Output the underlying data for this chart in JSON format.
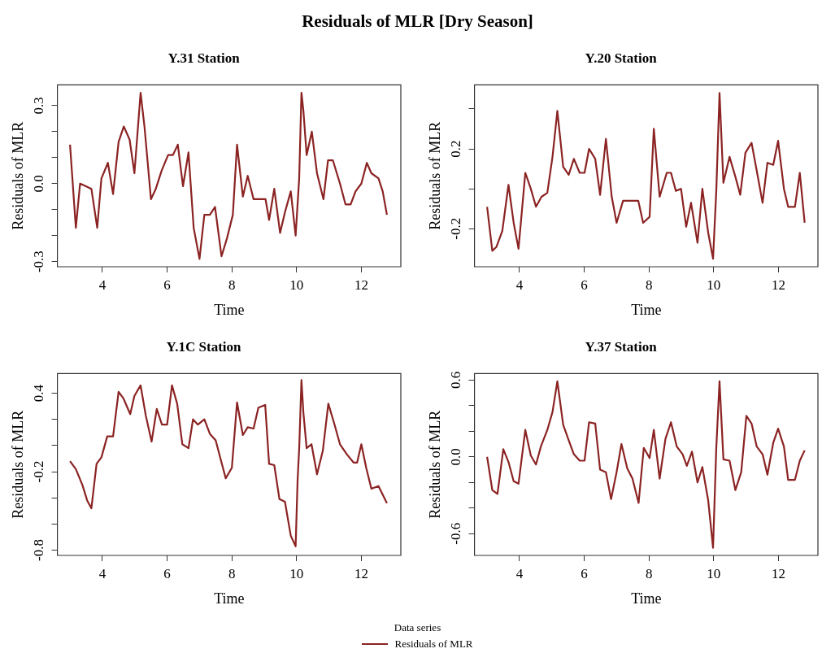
{
  "chart_data": [
    {
      "type": "line",
      "title": "Y.31 Station",
      "xlabel": "Time",
      "ylabel": "Residuals of MLR",
      "annotations": [
        "Residuals of MLR [Dry Season]"
      ],
      "xlim": [
        2.61,
        13.22
      ],
      "xticks": [
        4,
        6,
        8,
        10,
        12
      ],
      "ylim": [
        -0.32,
        0.38
      ],
      "yticks": [
        {
          "value": -0.3,
          "label": "-0.3"
        },
        {
          "value": -0.2,
          "label": null
        },
        {
          "value": -0.1,
          "label": null
        },
        {
          "value": 0,
          "label": "0.0"
        },
        {
          "value": 0.1,
          "label": null
        },
        {
          "value": 0.2,
          "label": null
        },
        {
          "value": 0.3,
          "label": "0.3"
        }
      ],
      "grid": false,
      "marker": "none",
      "line_style": "solid",
      "series": [
        {
          "color": "#8b2323",
          "x": [
            3.0,
            3.18,
            3.31,
            3.49,
            3.66,
            3.84,
            3.97,
            4.17,
            4.33,
            4.5,
            4.66,
            4.84,
            4.99,
            5.18,
            5.3,
            5.5,
            5.65,
            5.83,
            6.03,
            6.18,
            6.33,
            6.49,
            6.66,
            6.82,
            7.0,
            7.15,
            7.32,
            7.48,
            7.68,
            7.85,
            8.03,
            8.16,
            8.34,
            8.49,
            8.67,
            8.87,
            9.04,
            9.15,
            9.31,
            9.49,
            9.64,
            9.82,
            9.97,
            10.08,
            10.15,
            10.21,
            10.31,
            10.47,
            10.63,
            10.83,
            10.97,
            11.12,
            11.34,
            11.51,
            11.67,
            11.82,
            12.0,
            12.17,
            12.31,
            12.53,
            12.66,
            12.79
          ],
          "values": [
            0.15,
            -0.17,
            0.0,
            -0.01,
            -0.02,
            -0.17,
            0.02,
            0.08,
            -0.04,
            0.16,
            0.22,
            0.17,
            0.04,
            0.35,
            0.22,
            -0.06,
            -0.02,
            0.05,
            0.11,
            0.11,
            0.15,
            -0.01,
            0.12,
            -0.17,
            -0.29,
            -0.12,
            -0.12,
            -0.09,
            -0.28,
            -0.21,
            -0.12,
            0.15,
            -0.05,
            0.03,
            -0.06,
            -0.06,
            -0.06,
            -0.14,
            -0.02,
            -0.19,
            -0.11,
            -0.03,
            -0.2,
            0.02,
            0.35,
            0.28,
            0.11,
            0.2,
            0.04,
            -0.06,
            0.09,
            0.09,
            0.0,
            -0.08,
            -0.08,
            -0.03,
            0.0,
            0.08,
            0.04,
            0.02,
            -0.03,
            -0.12
          ]
        }
      ]
    },
    {
      "type": "line",
      "title": "Y.20 Station",
      "xlabel": "Time",
      "ylabel": "Residuals of MLR",
      "xlim": [
        2.61,
        13.22
      ],
      "xticks": [
        4,
        6,
        8,
        10,
        12
      ],
      "ylim": [
        -0.39,
        0.52
      ],
      "yticks": [
        {
          "value": -0.2,
          "label": "-0.2"
        },
        {
          "value": 0,
          "label": null
        },
        {
          "value": 0.2,
          "label": "0.2"
        },
        {
          "value": 0.4,
          "label": null
        }
      ],
      "grid": false,
      "marker": "none",
      "line_style": "solid",
      "series": [
        {
          "color": "#8b2323",
          "x": [
            3.0,
            3.16,
            3.29,
            3.47,
            3.66,
            3.82,
            3.97,
            4.18,
            4.35,
            4.51,
            4.68,
            4.86,
            5.02,
            5.17,
            5.35,
            5.52,
            5.68,
            5.86,
            6.01,
            6.15,
            6.34,
            6.49,
            6.67,
            6.85,
            7.0,
            7.2,
            7.67,
            7.82,
            8.02,
            8.15,
            8.33,
            8.55,
            8.68,
            8.83,
            8.99,
            9.15,
            9.3,
            9.5,
            9.65,
            9.83,
            9.98,
            10.08,
            10.18,
            10.3,
            10.49,
            10.67,
            10.82,
            10.98,
            11.17,
            11.33,
            11.51,
            11.66,
            11.84,
            11.99,
            12.17,
            12.3,
            12.51,
            12.66,
            12.81
          ],
          "values": [
            -0.09,
            -0.31,
            -0.29,
            -0.21,
            0.02,
            -0.17,
            -0.3,
            0.08,
            0.0,
            -0.09,
            -0.04,
            -0.02,
            0.16,
            0.39,
            0.11,
            0.07,
            0.15,
            0.08,
            0.08,
            0.2,
            0.15,
            -0.03,
            0.25,
            -0.04,
            -0.17,
            -0.06,
            -0.06,
            -0.17,
            -0.14,
            0.3,
            -0.04,
            0.08,
            0.08,
            -0.01,
            0.0,
            -0.19,
            -0.07,
            -0.27,
            0.0,
            -0.22,
            -0.35,
            -0.01,
            0.48,
            0.03,
            0.16,
            0.06,
            -0.03,
            0.18,
            0.23,
            0.09,
            -0.07,
            0.13,
            0.12,
            0.24,
            0.0,
            -0.09,
            -0.09,
            0.08,
            -0.17
          ]
        }
      ]
    },
    {
      "type": "line",
      "title": "Y.1C Station",
      "xlabel": "Time",
      "ylabel": "Residuals of MLR",
      "xlim": [
        2.61,
        13.22
      ],
      "xticks": [
        4,
        6,
        8,
        10,
        12
      ],
      "ylim": [
        -0.84,
        0.55
      ],
      "yticks": [
        {
          "value": -0.8,
          "label": "-0.8"
        },
        {
          "value": -0.6,
          "label": null
        },
        {
          "value": -0.4,
          "label": null
        },
        {
          "value": -0.2,
          "label": "-0.2"
        },
        {
          "value": 0,
          "label": null
        },
        {
          "value": 0.2,
          "label": null
        },
        {
          "value": 0.4,
          "label": "0.4"
        }
      ],
      "grid": false,
      "marker": "none",
      "line_style": "solid",
      "series": [
        {
          "color": "#8b2323",
          "x": [
            3.0,
            3.18,
            3.38,
            3.53,
            3.66,
            3.82,
            3.97,
            4.15,
            4.33,
            4.5,
            4.65,
            4.86,
            4.99,
            5.18,
            5.34,
            5.52,
            5.68,
            5.84,
            6.0,
            6.15,
            6.31,
            6.47,
            6.66,
            6.8,
            6.95,
            7.15,
            7.32,
            7.5,
            7.68,
            7.81,
            8.0,
            8.16,
            8.34,
            8.49,
            8.67,
            8.82,
            9.03,
            9.15,
            9.31,
            9.47,
            9.64,
            9.82,
            9.97,
            10.03,
            10.08,
            10.15,
            10.21,
            10.31,
            10.46,
            10.63,
            10.81,
            10.98,
            11.16,
            11.34,
            11.56,
            11.76,
            11.87,
            12.0,
            12.15,
            12.31,
            12.53,
            12.79
          ],
          "values": [
            -0.12,
            -0.18,
            -0.3,
            -0.42,
            -0.48,
            -0.14,
            -0.09,
            0.07,
            0.07,
            0.41,
            0.36,
            0.24,
            0.38,
            0.46,
            0.23,
            0.03,
            0.28,
            0.16,
            0.16,
            0.46,
            0.32,
            0.01,
            -0.02,
            0.2,
            0.16,
            0.2,
            0.09,
            0.04,
            -0.13,
            -0.25,
            -0.17,
            0.33,
            0.08,
            0.14,
            0.13,
            0.29,
            0.31,
            -0.14,
            -0.15,
            -0.41,
            -0.43,
            -0.69,
            -0.77,
            -0.27,
            -0.02,
            0.5,
            0.25,
            -0.02,
            0.01,
            -0.22,
            -0.04,
            0.32,
            0.17,
            0.01,
            -0.07,
            -0.13,
            -0.13,
            0.01,
            -0.17,
            -0.33,
            -0.31,
            -0.44
          ]
        }
      ]
    },
    {
      "type": "line",
      "title": "Y.37 Station",
      "xlabel": "Time",
      "ylabel": "Residuals of MLR",
      "xlim": [
        2.61,
        13.22
      ],
      "xticks": [
        4,
        6,
        8,
        10,
        12
      ],
      "ylim": [
        -0.77,
        0.65
      ],
      "yticks": [
        {
          "value": -0.6,
          "label": "-0.6"
        },
        {
          "value": -0.4,
          "label": null
        },
        {
          "value": -0.2,
          "label": null
        },
        {
          "value": 0,
          "label": "0.0"
        },
        {
          "value": 0.2,
          "label": null
        },
        {
          "value": 0.4,
          "label": null
        },
        {
          "value": 0.6,
          "label": "0.6"
        }
      ],
      "grid": false,
      "marker": "none",
      "line_style": "solid",
      "legend": "bottom",
      "legend_title": "Data series",
      "series": [
        {
          "name": "Residuals of MLR",
          "color": "#8b2323",
          "x": [
            3.0,
            3.16,
            3.32,
            3.5,
            3.66,
            3.82,
            3.97,
            4.18,
            4.35,
            4.51,
            4.66,
            4.86,
            5.02,
            5.17,
            5.35,
            5.52,
            5.68,
            5.86,
            6.01,
            6.15,
            6.34,
            6.49,
            6.67,
            6.83,
            7.0,
            7.15,
            7.33,
            7.49,
            7.68,
            7.84,
            8.02,
            8.15,
            8.33,
            8.51,
            8.68,
            8.86,
            9.04,
            9.17,
            9.33,
            9.5,
            9.65,
            9.83,
            9.98,
            10.08,
            10.18,
            10.3,
            10.49,
            10.67,
            10.85,
            11.01,
            11.17,
            11.33,
            11.51,
            11.66,
            11.84,
            11.99,
            12.17,
            12.3,
            12.51,
            12.66,
            12.81
          ],
          "values": [
            0.0,
            -0.26,
            -0.29,
            0.06,
            -0.04,
            -0.19,
            -0.21,
            0.21,
            0.01,
            -0.06,
            0.08,
            0.21,
            0.35,
            0.59,
            0.25,
            0.13,
            0.02,
            -0.03,
            -0.03,
            0.27,
            0.26,
            -0.1,
            -0.12,
            -0.33,
            -0.12,
            0.1,
            -0.09,
            -0.17,
            -0.36,
            0.07,
            -0.01,
            0.21,
            -0.17,
            0.14,
            0.27,
            0.08,
            0.02,
            -0.07,
            0.04,
            -0.2,
            -0.08,
            -0.34,
            -0.71,
            0.07,
            0.59,
            -0.02,
            -0.03,
            -0.26,
            -0.12,
            0.32,
            0.26,
            0.08,
            0.02,
            -0.14,
            0.11,
            0.22,
            0.08,
            -0.18,
            -0.18,
            -0.03,
            0.05
          ]
        }
      ]
    }
  ]
}
